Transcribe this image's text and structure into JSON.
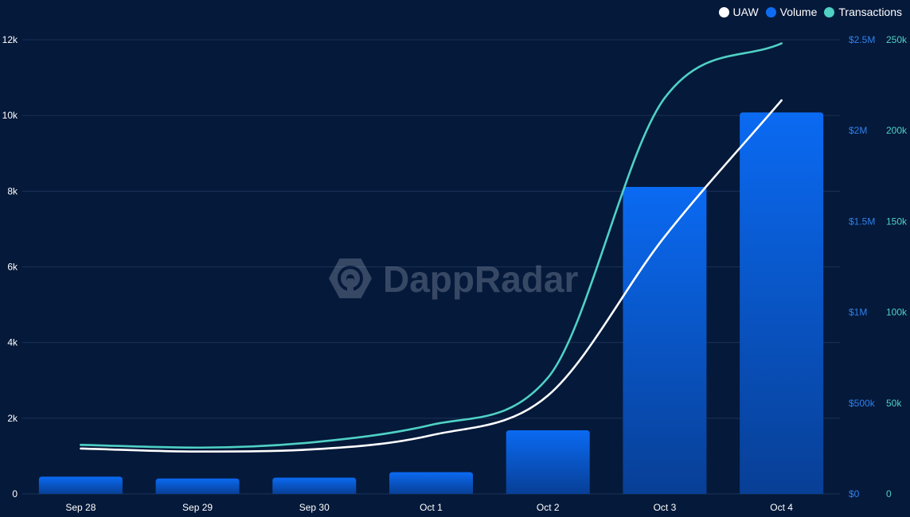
{
  "chart_data": {
    "type": "bar",
    "categories": [
      "Sep 28",
      "Sep 29",
      "Sep 30",
      "Oct 1",
      "Oct 2",
      "Oct 3",
      "Oct 4"
    ],
    "series": [
      {
        "name": "UAW",
        "type": "line",
        "axis": "left",
        "color": "#ffffff",
        "values": [
          1200,
          1120,
          1180,
          1550,
          2600,
          6800,
          10400
        ]
      },
      {
        "name": "Volume",
        "type": "bar",
        "axis": "right1",
        "color": "#0e6cf2",
        "values": [
          95000,
          85000,
          90000,
          120000,
          350000,
          1690000,
          2100000
        ]
      },
      {
        "name": "Transactions",
        "type": "line",
        "axis": "right2",
        "color": "#4fd1c5",
        "values": [
          27000,
          25500,
          28500,
          38000,
          64000,
          218000,
          248000
        ]
      }
    ],
    "axes": {
      "left": {
        "range": [
          0,
          12000
        ],
        "ticks": [
          "0",
          "2k",
          "4k",
          "6k",
          "8k",
          "10k",
          "12k"
        ],
        "color": "#ffffff"
      },
      "right1": {
        "range": [
          0,
          2500000
        ],
        "ticks": [
          "$0",
          "$500k",
          "$1M",
          "$1.5M",
          "$2M",
          "$2.5M"
        ],
        "color": "#2f80ed"
      },
      "right2": {
        "range": [
          0,
          250000
        ],
        "ticks": [
          "0",
          "50k",
          "100k",
          "150k",
          "200k",
          "250k"
        ],
        "color": "#4fd1c5"
      }
    },
    "grid": true,
    "legend_position": "top-right",
    "watermark": "DappRadar"
  }
}
